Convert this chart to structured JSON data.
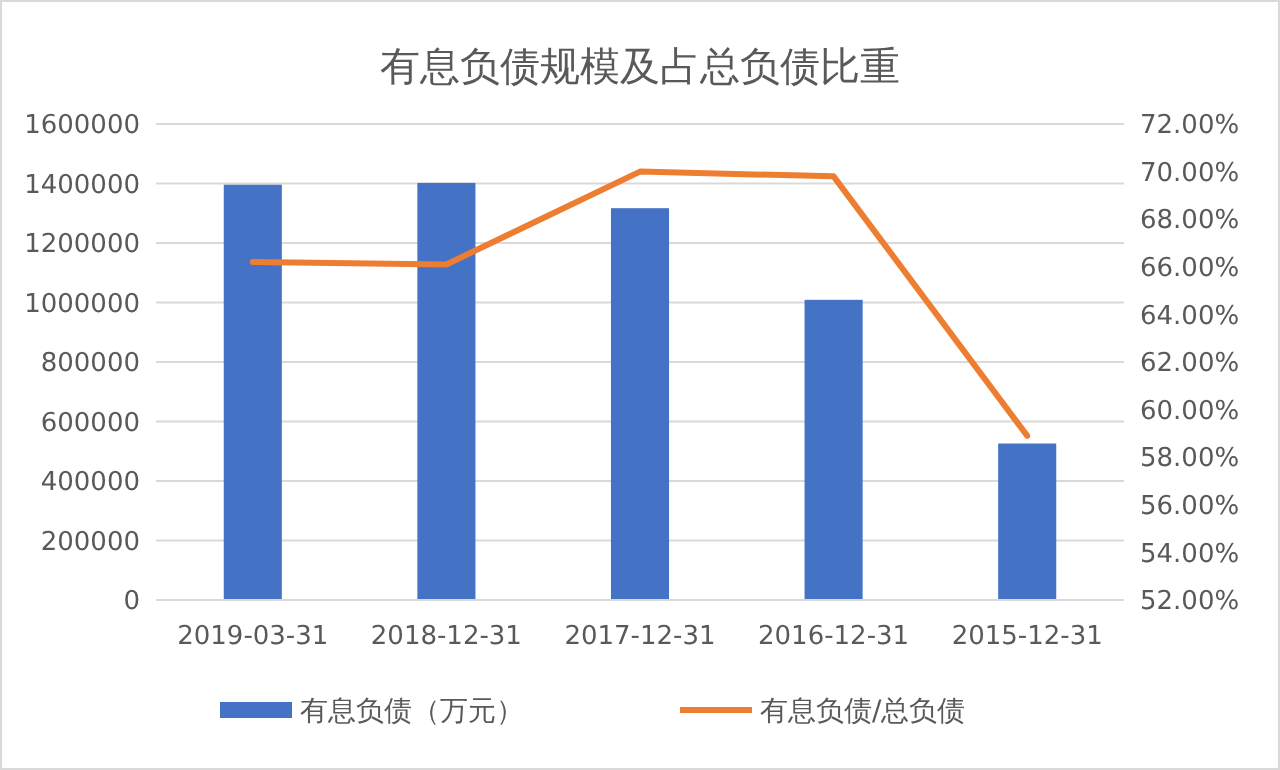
{
  "chart_data": {
    "type": "bar",
    "title": "有息负债规模及占总负债比重",
    "categories": [
      "2019-03-31",
      "2018-12-31",
      "2017-12-31",
      "2016-12-31",
      "2015-12-31"
    ],
    "series": [
      {
        "name": "有息负债（万元）",
        "color": "#4472c4",
        "values": [
          1396000,
          1402000,
          1317000,
          1009000,
          526000
        ]
      },
      {
        "name": "有息负债/总负债",
        "type": "line",
        "axis": "y2",
        "color": "#ed7d31",
        "values": [
          66.2,
          66.1,
          70,
          69.8,
          58.9
        ]
      }
    ],
    "ylim": [
      0,
      1600000
    ],
    "yticks": [
      0,
      200000,
      400000,
      600000,
      800000,
      1000000,
      1200000,
      1400000,
      1600000
    ],
    "y2lim": [
      52,
      72
    ],
    "y2ticks": [
      {
        "value": 52,
        "label": "52.00%"
      },
      {
        "value": 54,
        "label": "54.00%"
      },
      {
        "value": 56,
        "label": "56.00%"
      },
      {
        "value": 58,
        "label": "58.00%"
      },
      {
        "value": 60,
        "label": "60.00%"
      },
      {
        "value": 62,
        "label": "62.00%"
      },
      {
        "value": 64,
        "label": "64.00%"
      },
      {
        "value": 66,
        "label": "66.00%"
      },
      {
        "value": 68,
        "label": "68.00%"
      },
      {
        "value": 70,
        "label": "70.00%"
      },
      {
        "value": 72,
        "label": "72.00%"
      }
    ],
    "grid": "y",
    "legend": "bottom",
    "marker": "none",
    "line_style": "solid"
  }
}
